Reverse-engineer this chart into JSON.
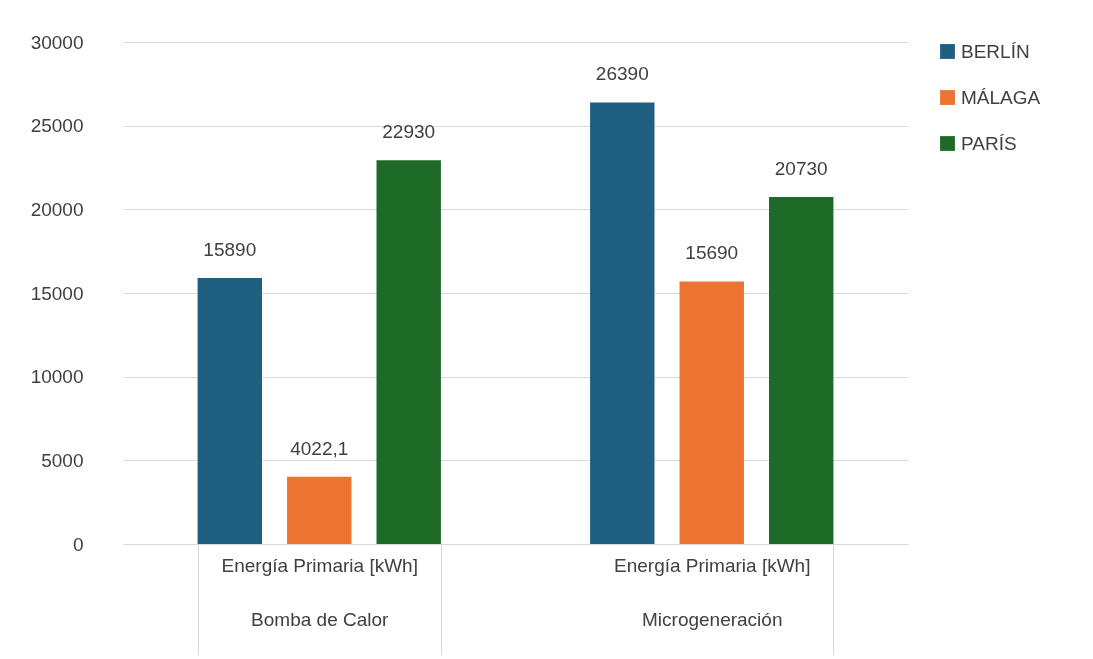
{
  "chart_data": {
    "type": "bar",
    "categories": [
      "Energía Primaria [kWh]\nBomba de Calor",
      "Energía Primaria [kWh]\nMicrogeneración"
    ],
    "series": [
      {
        "name": "BERLÍN",
        "color": "#1f5f82",
        "values": [
          15890,
          26390
        ],
        "value_labels": [
          "15890",
          "26390"
        ]
      },
      {
        "name": "MÁLAGA",
        "color": "#ed7332",
        "values": [
          4022.1,
          15690
        ],
        "value_labels": [
          "4022,1",
          "15690"
        ]
      },
      {
        "name": "PARÍS",
        "color": "#1e6b28",
        "values": [
          22930,
          20730
        ],
        "value_labels": [
          "22930",
          "20730"
        ]
      }
    ],
    "ylim": [
      0,
      30000
    ],
    "yticks": [
      0,
      5000,
      10000,
      15000,
      20000,
      25000,
      30000
    ],
    "grid": "y",
    "legend": "right"
  }
}
